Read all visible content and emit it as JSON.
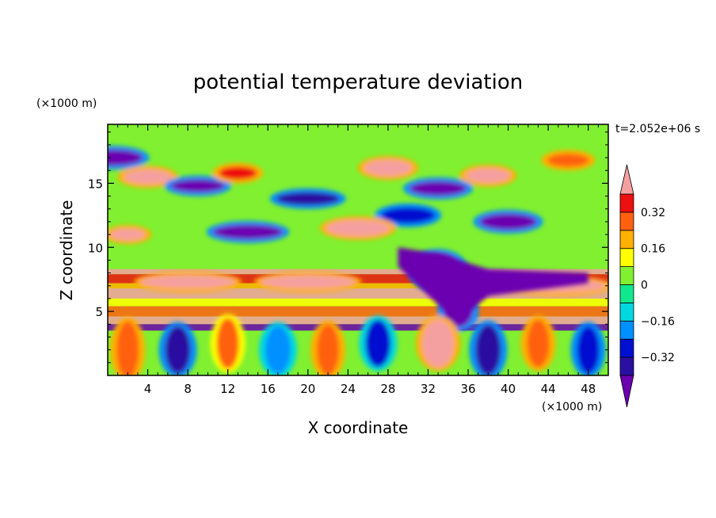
{
  "chart_data": {
    "type": "heatmap",
    "title": "potential temperature deviation",
    "xlabel": "X coordinate",
    "ylabel": "Z coordinate",
    "x_unit": "(×1000 m)",
    "y_unit": "(×1000 m)",
    "time_label": "t=2.052e+06 s",
    "xlim": [
      0,
      50
    ],
    "ylim": [
      0,
      19.6
    ],
    "xticks": [
      4,
      8,
      12,
      16,
      20,
      24,
      28,
      32,
      36,
      40,
      44,
      48
    ],
    "yticks": [
      5,
      10,
      15
    ],
    "colorbar": {
      "ticks": [
        0.32,
        0.16,
        0,
        -0.16,
        -0.32
      ],
      "tick_labels": [
        "0.32",
        "0.16",
        "0",
        "−0.16",
        "−0.32"
      ],
      "levels": [
        -0.4,
        -0.32,
        -0.24,
        -0.16,
        -0.08,
        0,
        0.08,
        0.16,
        0.24,
        0.32,
        0.4
      ],
      "colors": [
        "#6a00b0",
        "#2a10a0",
        "#0010d0",
        "#0090ff",
        "#00d8e0",
        "#10e890",
        "#80f030",
        "#ffff00",
        "#ffb000",
        "#ff6010",
        "#ee1010",
        "#f5a0a0"
      ],
      "extend": "both"
    },
    "features": [
      {
        "x": 0.5,
        "z": 17,
        "value": -0.42
      },
      {
        "x": 4,
        "z": 15.5,
        "value": 0.42
      },
      {
        "x": 9,
        "z": 14.8,
        "value": -0.42
      },
      {
        "x": 13,
        "z": 15.8,
        "value": 0.35
      },
      {
        "x": 28,
        "z": 16.2,
        "value": 0.42
      },
      {
        "x": 38,
        "z": 15.6,
        "value": 0.42
      },
      {
        "x": 46,
        "z": 16.8,
        "value": 0.3
      },
      {
        "x": 33,
        "z": 14.6,
        "value": -0.42
      },
      {
        "x": 20,
        "z": 13.8,
        "value": -0.35
      },
      {
        "x": 30,
        "z": 12.5,
        "value": -0.3
      },
      {
        "x": 2,
        "z": 11,
        "value": 0.42
      },
      {
        "x": 14,
        "z": 11.2,
        "value": -0.42
      },
      {
        "x": 25,
        "z": 11.5,
        "value": 0.42
      },
      {
        "x": 40,
        "z": 12,
        "value": -0.42
      },
      {
        "x": 33,
        "z": 8.2,
        "value": -0.42
      },
      {
        "x": 35,
        "z": 5,
        "value": -0.42
      },
      {
        "x": 8,
        "z": 7.3,
        "value": 0.42
      },
      {
        "x": 20,
        "z": 7.3,
        "value": 0.42
      },
      {
        "x": 45,
        "z": 7,
        "value": 0.42
      },
      {
        "x": 2,
        "z": 2,
        "value": 0.3
      },
      {
        "x": 7,
        "z": 2,
        "value": -0.35
      },
      {
        "x": 12,
        "z": 2.5,
        "value": 0.25
      },
      {
        "x": 17,
        "z": 2,
        "value": -0.2
      },
      {
        "x": 22,
        "z": 2,
        "value": 0.3
      },
      {
        "x": 27,
        "z": 2.5,
        "value": -0.25
      },
      {
        "x": 33,
        "z": 2.5,
        "value": 0.42
      },
      {
        "x": 38,
        "z": 2,
        "value": -0.35
      },
      {
        "x": 43,
        "z": 2.5,
        "value": 0.3
      },
      {
        "x": 48,
        "z": 2,
        "value": -0.3
      }
    ]
  }
}
